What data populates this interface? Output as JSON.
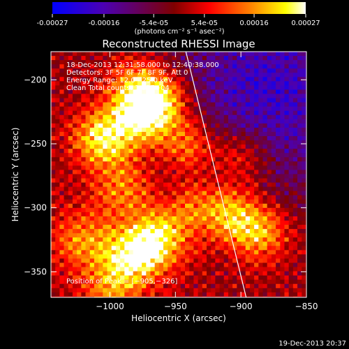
{
  "colorbar": {
    "ticks": [
      "-0.00027",
      "-0.00016",
      "-5.4e-05",
      "5.4e-05",
      "0.00016",
      "0.00027"
    ],
    "tick_values": [
      -0.00027,
      -0.00016,
      -5.4e-05,
      5.4e-05,
      0.00016,
      0.00027
    ],
    "range": [
      -0.00027,
      0.00027
    ],
    "unit_label": "(photons cm⁻² s⁻¹ asec⁻²)",
    "colors": [
      "#0000ff",
      "#4b00b4",
      "#7f0000",
      "#ff0000",
      "#ff8000",
      "#ffff00",
      "#ffffff"
    ]
  },
  "chart_data": {
    "type": "heatmap",
    "title": "Reconstructed RHESSI Image",
    "xlabel": "Heliocentric X (arcsec)",
    "ylabel": "Heliocentric Y (arcsec)",
    "xlim": [
      -1045,
      -850
    ],
    "ylim": [
      -370,
      -178
    ],
    "xticks": [
      -1000,
      -950,
      -900,
      -850
    ],
    "xtick_labels": [
      "−1000",
      "−950",
      "−900",
      "−850"
    ],
    "yticks": [
      -200,
      -250,
      -300,
      -350
    ],
    "ytick_labels": [
      "−200",
      "−250",
      "−300",
      "−350"
    ],
    "info_lines": [
      "18-Dec-2013 12:31:58.000 to 12:40:38.000",
      "Detectors: 3F 5F 6F 7F 8F 9F, Att 0",
      "Energy Range: 12.0 - 25.0 keV",
      "Clean     Total counts: 1.03E+04"
    ],
    "peak_label": "Position of Peak = [−905,−326]",
    "peak": [
      -905,
      -326
    ],
    "limb_line": [
      [
        -942,
        -178
      ],
      [
        -896,
        -370
      ]
    ],
    "blobs": [
      {
        "x": -1005,
        "y": -245,
        "w": 1.0
      },
      {
        "x": -975,
        "y": -230,
        "w": 0.9
      },
      {
        "x": -980,
        "y": -205,
        "w": 0.7
      },
      {
        "x": -960,
        "y": -215,
        "w": 0.8
      },
      {
        "x": -940,
        "y": -250,
        "w": 0.75
      },
      {
        "x": -990,
        "y": -285,
        "w": 0.6
      },
      {
        "x": -965,
        "y": -325,
        "w": 1.0
      },
      {
        "x": -985,
        "y": -340,
        "w": 0.8
      },
      {
        "x": -1020,
        "y": -325,
        "w": 0.6
      },
      {
        "x": -935,
        "y": -300,
        "w": 0.55
      },
      {
        "x": -905,
        "y": -305,
        "w": 0.75
      },
      {
        "x": -885,
        "y": -320,
        "w": 0.7
      },
      {
        "x": -900,
        "y": -260,
        "w": 0.6
      },
      {
        "x": -1000,
        "y": -365,
        "w": 0.5
      }
    ],
    "neg_region": {
      "x": -880,
      "y": -210,
      "w": 1.0
    }
  },
  "footer": {
    "timestamp": "19-Dec-2013 20:37"
  }
}
